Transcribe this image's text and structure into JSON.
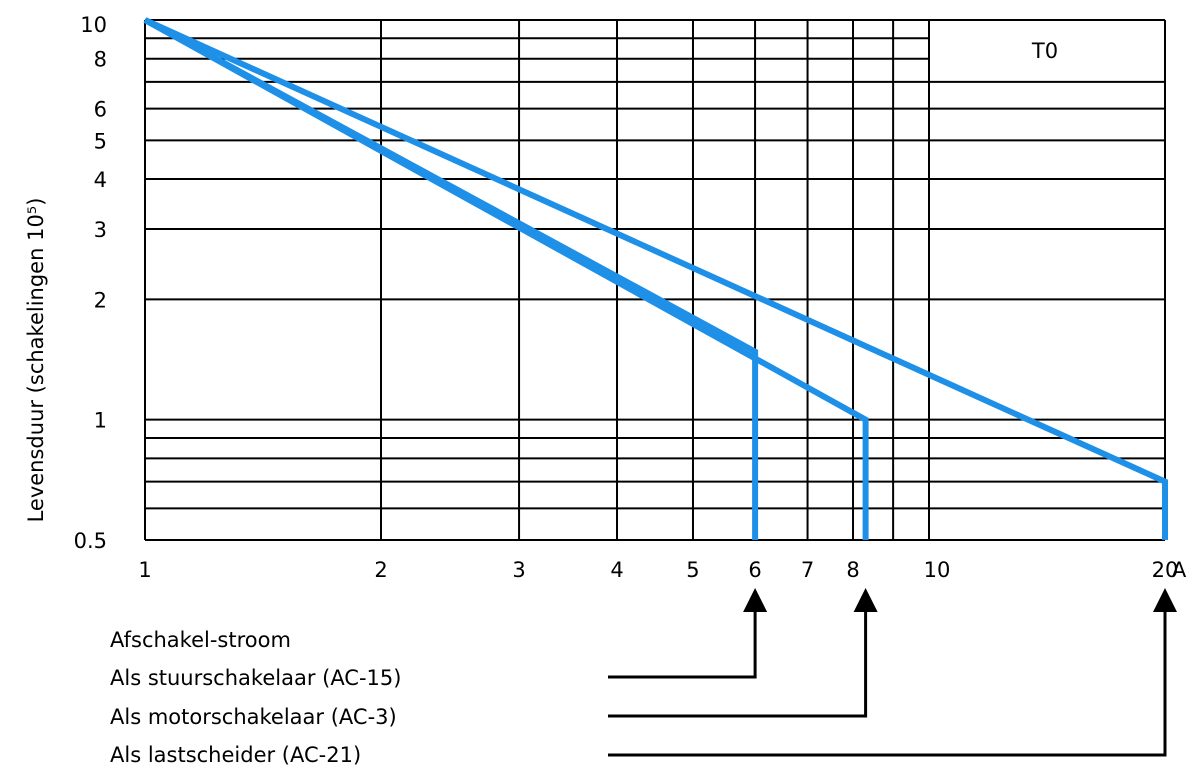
{
  "chart_data": {
    "type": "line",
    "title": "",
    "box_label": "T0",
    "xlabel": "",
    "x_unit": "A",
    "ylabel": "Levensduur (schakelingen 10⁵)",
    "xscale": "log",
    "yscale": "log",
    "xlim": [
      1,
      20
    ],
    "ylim": [
      0.5,
      10
    ],
    "x_tick_labels": [
      "1",
      "2",
      "3",
      "4",
      "5",
      "6",
      "7",
      "8",
      "10",
      "20"
    ],
    "y_tick_labels": [
      "0.5",
      "1",
      "2",
      "3",
      "4",
      "5",
      "6",
      "8",
      "10"
    ],
    "x_gridlines": [
      1,
      2,
      3,
      4,
      5,
      6,
      7,
      8,
      9,
      10,
      20
    ],
    "y_gridlines": [
      0.5,
      0.6,
      0.7,
      0.8,
      0.9,
      1,
      2,
      3,
      4,
      5,
      6,
      7,
      8,
      9,
      10
    ],
    "grid": true,
    "line_color": "#1e90e8",
    "series": [
      {
        "name": "",
        "points": [
          [
            1,
            10
          ],
          [
            6,
            1.48
          ],
          [
            6,
            0.5
          ]
        ]
      },
      {
        "name": "",
        "points": [
          [
            1,
            10
          ],
          [
            8.3,
            1.0
          ],
          [
            8.3,
            0.5
          ]
        ]
      },
      {
        "name": "",
        "points": [
          [
            1,
            10
          ],
          [
            20,
            0.7
          ],
          [
            20,
            0.5
          ]
        ]
      }
    ],
    "annotations": {
      "heading": "Afschakel-stroom",
      "items": [
        {
          "label": "Als stuurschakelaar (AC-15)",
          "x": 6
        },
        {
          "label": "Als motorschakelaar (AC-3)",
          "x": 8.3
        },
        {
          "label": "Als lastscheider (AC-21)",
          "x": 20
        }
      ]
    }
  }
}
